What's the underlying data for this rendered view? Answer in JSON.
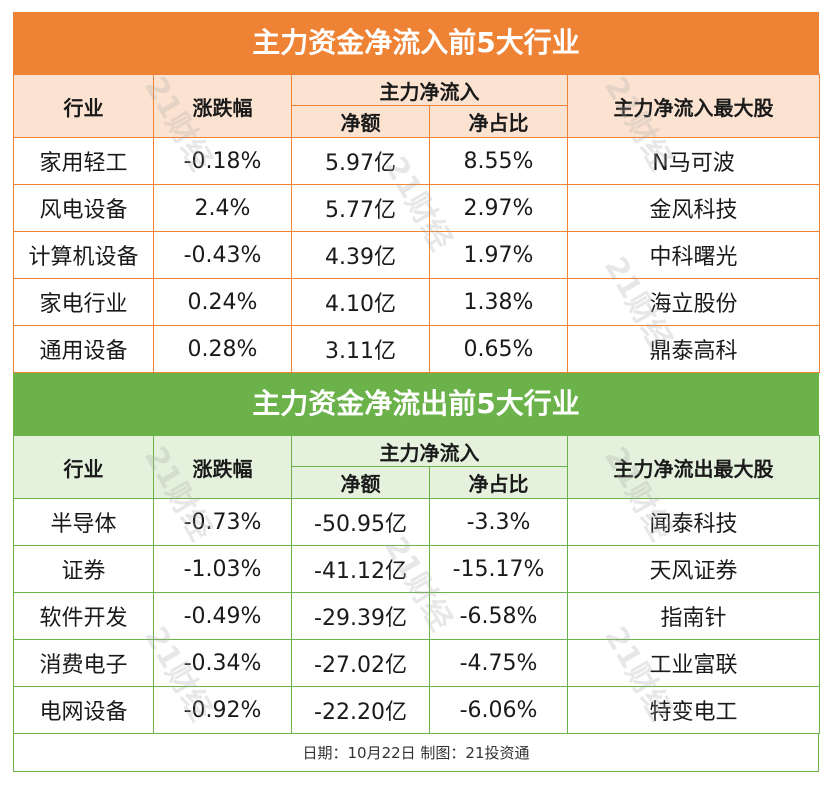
{
  "inflow": {
    "title": "主力资金净流入前5大行业",
    "headers": {
      "industry": "行业",
      "change": "涨跌幅",
      "net_inflow": "主力净流入",
      "net_amount": "净额",
      "net_ratio": "净占比",
      "top_stock": "主力净流入最大股"
    },
    "rows": [
      {
        "industry": "家用轻工",
        "change": "-0.18%",
        "amount": "5.97亿",
        "ratio": "8.55%",
        "stock": "N马可波"
      },
      {
        "industry": "风电设备",
        "change": "2.4%",
        "amount": "5.77亿",
        "ratio": "2.97%",
        "stock": "金风科技"
      },
      {
        "industry": "计算机设备",
        "change": "-0.43%",
        "amount": "4.39亿",
        "ratio": "1.97%",
        "stock": "中科曙光"
      },
      {
        "industry": "家电行业",
        "change": "0.24%",
        "amount": "4.10亿",
        "ratio": "1.38%",
        "stock": "海立股份"
      },
      {
        "industry": "通用设备",
        "change": "0.28%",
        "amount": "3.11亿",
        "ratio": "0.65%",
        "stock": "鼎泰高科"
      }
    ]
  },
  "outflow": {
    "title": "主力资金净流出前5大行业",
    "headers": {
      "industry": "行业",
      "change": "涨跌幅",
      "net_inflow": "主力净流入",
      "net_amount": "净额",
      "net_ratio": "净占比",
      "top_stock": "主力净流出最大股"
    },
    "rows": [
      {
        "industry": "半导体",
        "change": "-0.73%",
        "amount": "-50.95亿",
        "ratio": "-3.3%",
        "stock": "闻泰科技"
      },
      {
        "industry": "证券",
        "change": "-1.03%",
        "amount": "-41.12亿",
        "ratio": "-15.17%",
        "stock": "天风证券"
      },
      {
        "industry": "软件开发",
        "change": "-0.49%",
        "amount": "-29.39亿",
        "ratio": "-6.58%",
        "stock": "指南针"
      },
      {
        "industry": "消费电子",
        "change": "-0.34%",
        "amount": "-27.02亿",
        "ratio": "-4.75%",
        "stock": "工业富联"
      },
      {
        "industry": "电网设备",
        "change": "-0.92%",
        "amount": "-22.20亿",
        "ratio": "-6.06%",
        "stock": "特变电工"
      }
    ]
  },
  "footer": {
    "note": "日期：10月22日 制图：21投资通"
  },
  "watermark": "21财经",
  "colors": {
    "inflow_accent": "#ee8336",
    "inflow_header_bg": "#fce3d1",
    "outflow_accent": "#6bb24a",
    "outflow_header_bg": "#e4f1dc"
  }
}
